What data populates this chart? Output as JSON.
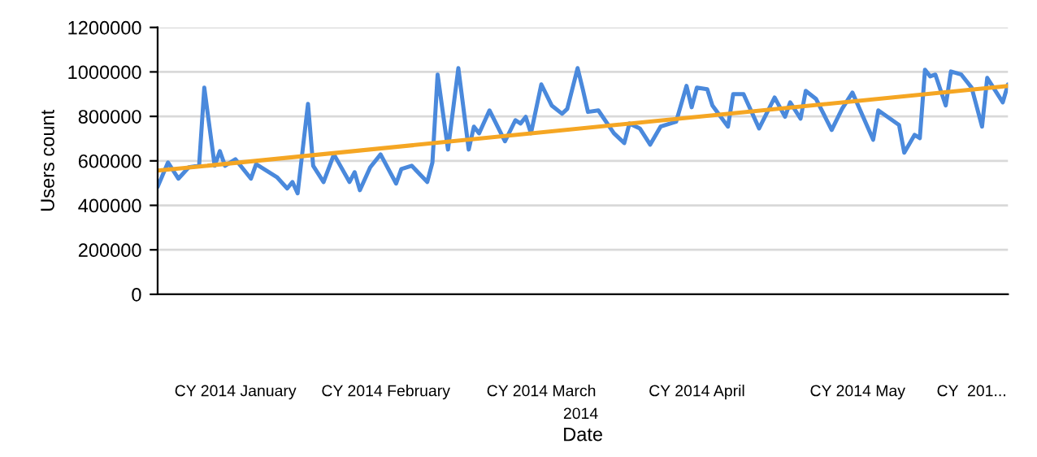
{
  "chart_data": {
    "type": "line",
    "xlabel": "Date",
    "ylabel": "Users count",
    "annotations": [
      "2014"
    ],
    "series": [
      {
        "color": "#4a89dc",
        "x": [
          "2014-01-01",
          "2014-01-03",
          "2014-01-05",
          "2014-01-07",
          "2014-01-09",
          "2014-01-10",
          "2014-01-12",
          "2014-01-13",
          "2014-01-14",
          "2014-01-16",
          "2014-01-19",
          "2014-01-20",
          "2014-01-22",
          "2014-01-24",
          "2014-01-26",
          "2014-01-27",
          "2014-01-28",
          "2014-01-30",
          "2014-01-31",
          "2014-02-02",
          "2014-02-04",
          "2014-02-07",
          "2014-02-08",
          "2014-02-09",
          "2014-02-11",
          "2014-02-13",
          "2014-02-16",
          "2014-02-17",
          "2014-02-19",
          "2014-02-22",
          "2014-02-23",
          "2014-02-24",
          "2014-02-26",
          "2014-02-28",
          "2014-03-02",
          "2014-03-03",
          "2014-03-04",
          "2014-03-06",
          "2014-03-09",
          "2014-03-11",
          "2014-03-12",
          "2014-03-13",
          "2014-03-14",
          "2014-03-16",
          "2014-03-18",
          "2014-03-20",
          "2014-03-21",
          "2014-03-23",
          "2014-03-24",
          "2014-03-25",
          "2014-03-27",
          "2014-03-30",
          "2014-04-01",
          "2014-04-02",
          "2014-04-04",
          "2014-04-06",
          "2014-04-08",
          "2014-04-11",
          "2014-04-13",
          "2014-04-14",
          "2014-04-15",
          "2014-04-17",
          "2014-04-18",
          "2014-04-21",
          "2014-04-22",
          "2014-04-24",
          "2014-04-27",
          "2014-04-30",
          "2014-05-02",
          "2014-05-03",
          "2014-05-05",
          "2014-05-06",
          "2014-05-08",
          "2014-05-11",
          "2014-05-13",
          "2014-05-15",
          "2014-05-19",
          "2014-05-20",
          "2014-05-24",
          "2014-05-25",
          "2014-05-27",
          "2014-05-28",
          "2014-05-29",
          "2014-05-30",
          "2014-05-31",
          "2014-06-02",
          "2014-06-03",
          "2014-06-05",
          "2014-06-07",
          "2014-06-09",
          "2014-06-10",
          "2014-06-13",
          "2014-06-14"
        ],
        "values": [
          483000,
          593000,
          520000,
          571000,
          578000,
          929000,
          578000,
          644000,
          578000,
          607000,
          520000,
          585000,
          556000,
          527000,
          476000,
          505000,
          454000,
          856000,
          578000,
          505000,
          629000,
          505000,
          549000,
          468000,
          571000,
          629000,
          498000,
          563000,
          578000,
          505000,
          593000,
          988000,
          651000,
          1017000,
          651000,
          754000,
          724000,
          827000,
          688000,
          783000,
          768000,
          798000,
          724000,
          944000,
          849000,
          812000,
          834000,
          1017000,
          922000,
          820000,
          827000,
          724000,
          680000,
          768000,
          746000,
          673000,
          754000,
          776000,
          937000,
          841000,
          929000,
          922000,
          849000,
          754000,
          900000,
          900000,
          746000,
          885000,
          798000,
          863000,
          790000,
          915000,
          878000,
          739000,
          834000,
          907000,
          695000,
          827000,
          761000,
          637000,
          717000,
          702000,
          1010000,
          980000,
          988000,
          849000,
          1002000,
          988000,
          929000,
          754000,
          973000,
          863000,
          944000
        ]
      },
      {
        "type": "line",
        "color": "#f5a623",
        "x": [
          "2014-01-01",
          "2014-06-14"
        ],
        "values": [
          556000,
          937000
        ]
      }
    ],
    "xlim": [
      "2014-01-01",
      "2014-06-14"
    ],
    "xticks": [
      {
        "value": "2014-01-16",
        "label": "CY 2014 January"
      },
      {
        "value": "2014-02-14",
        "label": "CY 2014 February"
      },
      {
        "value": "2014-03-16",
        "label": "CY 2014 March"
      },
      {
        "value": "2014-04-15",
        "label": "CY 2014 April"
      },
      {
        "value": "2014-05-16",
        "label": "CY 2014 May"
      },
      {
        "value": "2014-06-07",
        "label": "CY  201..."
      }
    ],
    "ylim": [
      0,
      1200000
    ],
    "yticks": [
      0,
      200000,
      400000,
      600000,
      800000,
      1000000,
      1200000
    ],
    "grid": "y",
    "legend": false
  }
}
